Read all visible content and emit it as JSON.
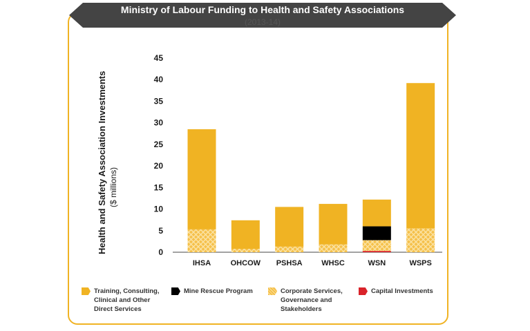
{
  "chart_data": {
    "type": "bar",
    "stacked": true,
    "title": "Ministry of Labour Funding to Health and Safety Associations",
    "subtitle": "(2013-14)",
    "ylabel_line1": "Health and Safety Association Investments",
    "ylabel_line2": "($ millions)",
    "ylim": [
      0,
      45
    ],
    "yticks": [
      "0",
      "5",
      "10",
      "15",
      "20",
      "25",
      "30",
      "35",
      "40",
      "45"
    ],
    "categories": [
      "IHSA",
      "OHCOW",
      "PSHSA",
      "WHSC",
      "WSN",
      "WSPS"
    ],
    "series": [
      {
        "name": "Capital Investments",
        "color": "#d9232a",
        "values": [
          0,
          0,
          0,
          0,
          0.3,
          0
        ]
      },
      {
        "name": "Corporate Services, Governance and Stakeholders",
        "color": "#f5c04a",
        "pattern": "crosshatch",
        "values": [
          5.3,
          0.8,
          1.3,
          1.8,
          2.5,
          5.5
        ]
      },
      {
        "name": "Mine Rescue Program",
        "color": "#000000",
        "values": [
          0,
          0,
          0,
          0,
          3.2,
          0
        ]
      },
      {
        "name": "Training, Consulting, Clinical and Other Direct Services",
        "color": "#f0b323",
        "values": [
          23.2,
          6.6,
          9.2,
          9.4,
          6.2,
          33.7
        ]
      }
    ],
    "legend_placement": "bottom",
    "grid": false
  },
  "legend": [
    {
      "label": "Training, Consulting, Clinical and Other Direct Services",
      "lines": [
        "Training, Consulting,",
        "Clinical and Other",
        "Direct Services"
      ],
      "color": "#f0b323",
      "icon": "training-swatch-icon"
    },
    {
      "label": "Mine Rescue Program",
      "lines": [
        "Mine Rescue Program"
      ],
      "color": "#000000",
      "icon": "mine-rescue-swatch-icon"
    },
    {
      "label": "Corporate Services, Governance and Stakeholders",
      "lines": [
        "Corporate Services,",
        "Governance and",
        "Stakeholders"
      ],
      "color": "#f5c04a",
      "icon": "corporate-swatch-icon"
    },
    {
      "label": "Capital Investments",
      "lines": [
        "Capital Investments"
      ],
      "color": "#d9232a",
      "icon": "capital-swatch-icon"
    }
  ],
  "colors": {
    "frame": "#f0b323",
    "banner": "#444444"
  }
}
